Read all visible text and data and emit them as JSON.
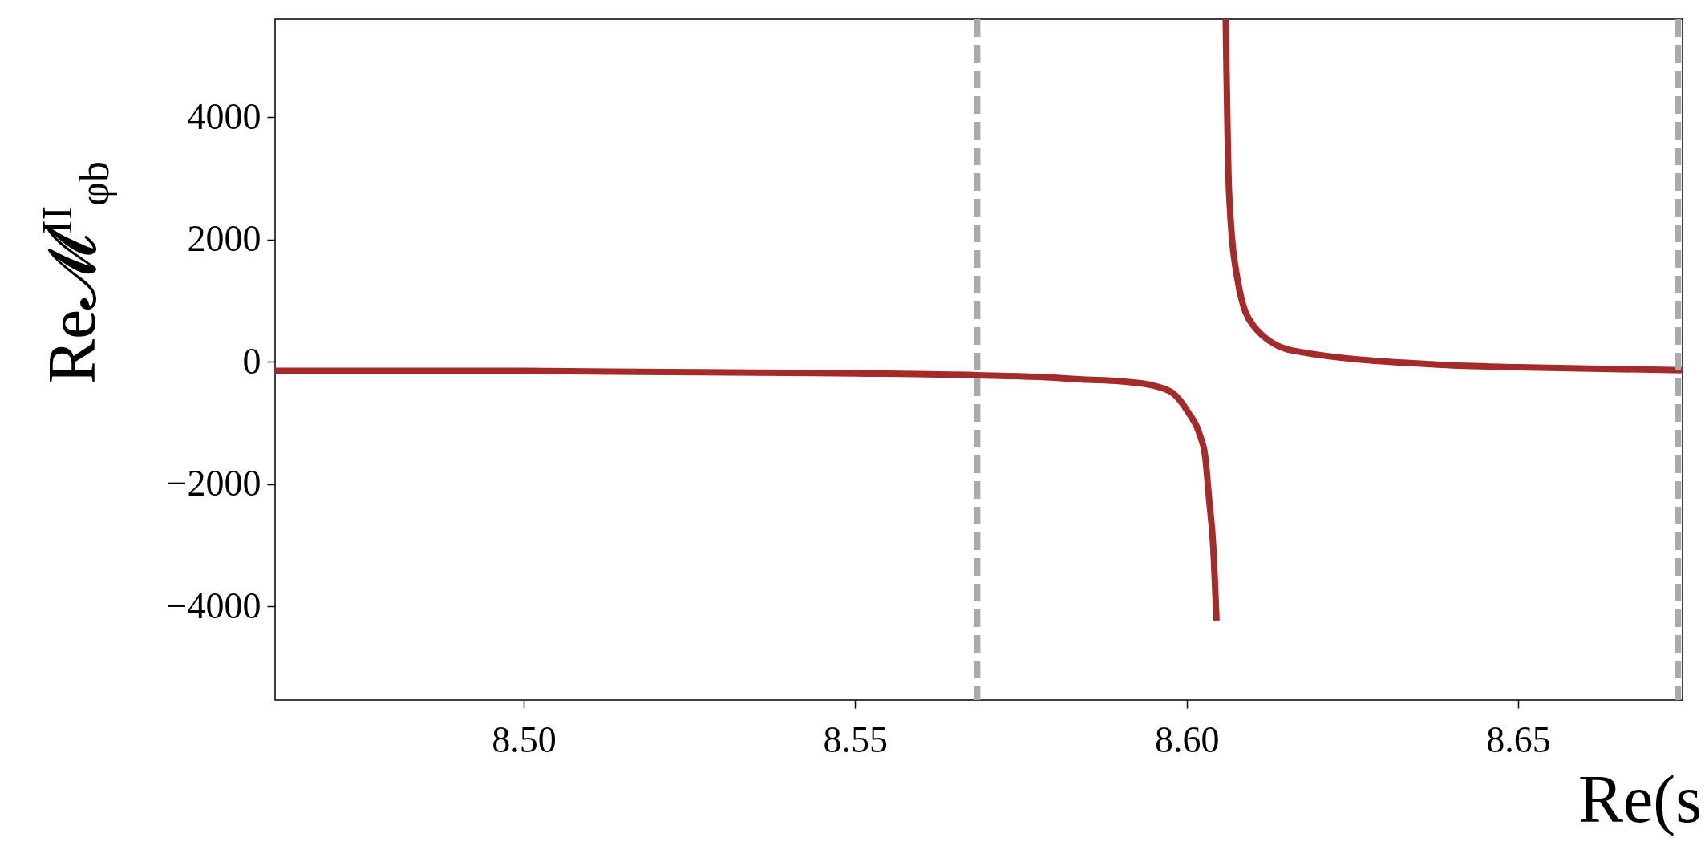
{
  "chart_data": {
    "type": "line",
    "xlabel": "Re(s",
    "ylabel": "Re𝓜$^{II}$$_{φb}$",
    "xlim": [
      8.4625,
      8.6748
    ],
    "ylim": [
      -5530,
      5600
    ],
    "xticks": [
      {
        "value": 8.5,
        "label": "8.50"
      },
      {
        "value": 8.55,
        "label": "8.55"
      },
      {
        "value": 8.6,
        "label": "8.60"
      },
      {
        "value": 8.65,
        "label": "8.65"
      }
    ],
    "yticks": [
      {
        "value": -4000,
        "label": "−4000"
      },
      {
        "value": -2000,
        "label": "−2000"
      },
      0,
      2000,
      4000
    ],
    "series": [
      {
        "color": "#a52a2a",
        "x": [
          8.4625,
          8.5,
          8.55,
          8.5684,
          8.58,
          8.5843,
          8.59,
          8.595,
          8.598,
          8.6002,
          8.602,
          8.6028,
          8.6034,
          8.604,
          8.6045
        ],
        "values": [
          -150,
          -150,
          -190,
          -220,
          -260,
          -290,
          -320,
          -390,
          -520,
          -820,
          -1200,
          -1550,
          -2260,
          -3000,
          -4230
        ]
      },
      {
        "color": "#a52a2a",
        "x": [
          8.6059,
          8.6064,
          8.6077,
          8.61,
          8.6161,
          8.6385,
          8.65,
          8.6748
        ],
        "values": [
          5600,
          2770,
          1330,
          600,
          180,
          -50,
          -90,
          -140
        ]
      }
    ],
    "ref_lines": [
      {
        "axis": "x",
        "value": 8.5684,
        "color": "#aaaaaa",
        "line_style": "dashed"
      },
      {
        "axis": "x",
        "value": 8.6741,
        "color": "#aaaaaa",
        "line_style": "dashed"
      }
    ],
    "grid": false,
    "line_style": "solid",
    "marker": "none"
  }
}
